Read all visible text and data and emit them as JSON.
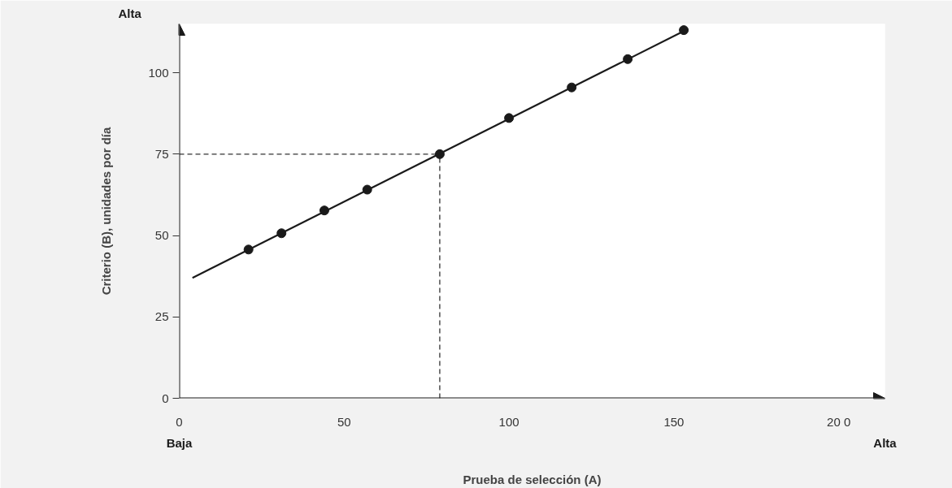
{
  "chart_data": {
    "type": "scatter",
    "xlabel": "Prueba de selección (A)",
    "ylabel": "Criterio (B), unidades por día",
    "x": [
      21,
      31,
      44,
      57,
      79,
      100,
      119,
      136,
      153
    ],
    "series": [
      {
        "color": "#1a1a1a",
        "marker": "circle",
        "values": [
          45.7,
          50.7,
          57.7,
          64.1,
          75,
          86.1,
          95.5,
          104.2,
          113.1
        ]
      },
      {
        "type": "line",
        "color": "#1a1a1a",
        "x": [
          4,
          154
        ],
        "values": [
          37,
          113.3
        ]
      }
    ],
    "xlim": [
      0,
      214
    ],
    "ylim": [
      0,
      115
    ],
    "xticks": [
      0,
      50,
      100,
      150,
      {
        "value": 200,
        "label": "20 0"
      }
    ],
    "yticks": [
      0,
      25,
      50,
      75,
      100
    ],
    "ref_lines": [
      {
        "axis": "x",
        "value": 79,
        "color": "#333333",
        "line_style": "dashed"
      },
      {
        "axis": "y",
        "value": 75,
        "color": "#333333",
        "line_style": "dashed"
      }
    ],
    "annotations": [
      "Alta",
      "Baja",
      "Alta"
    ],
    "grid": false
  }
}
